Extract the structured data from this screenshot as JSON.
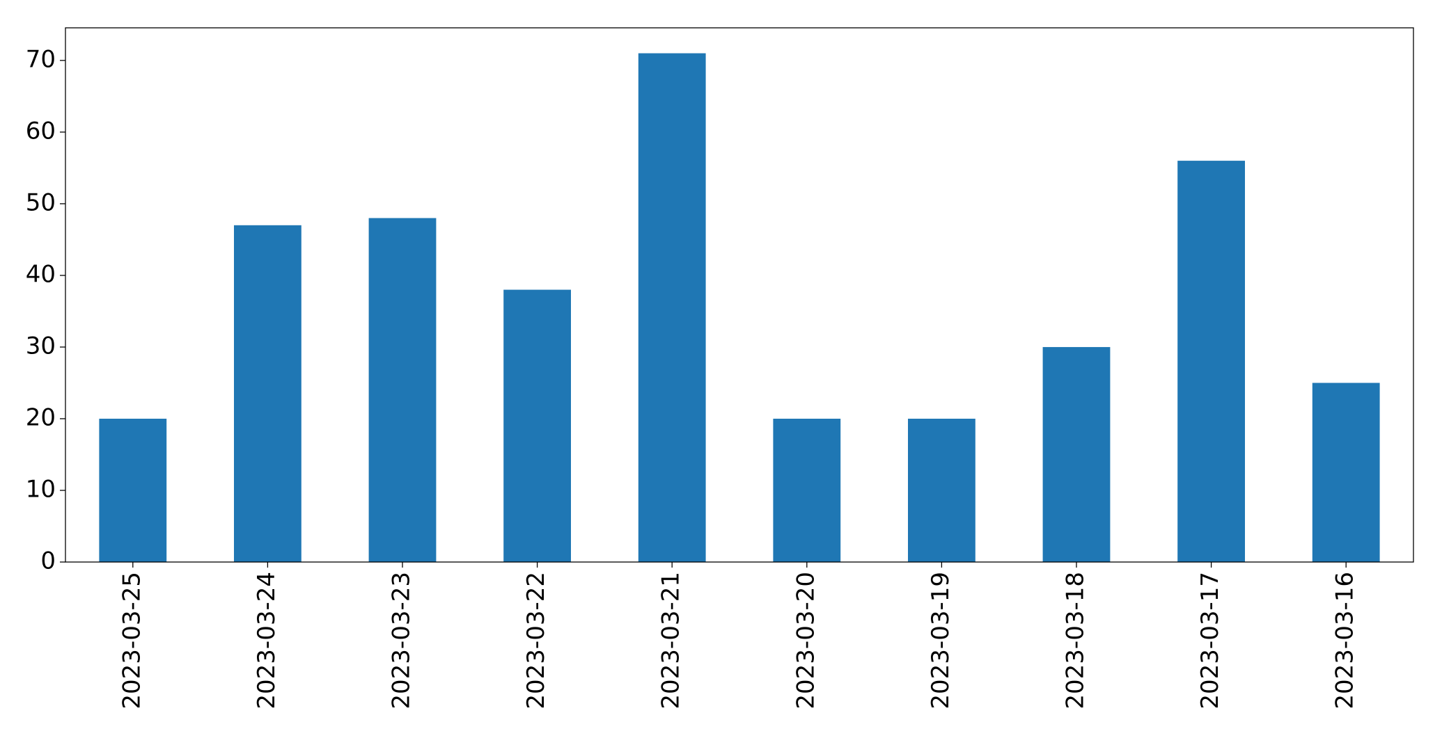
{
  "chart_data": {
    "type": "bar",
    "categories": [
      "2023-03-25",
      "2023-03-24",
      "2023-03-23",
      "2023-03-22",
      "2023-03-21",
      "2023-03-20",
      "2023-03-19",
      "2023-03-18",
      "2023-03-17",
      "2023-03-16"
    ],
    "values": [
      20,
      47,
      48,
      38,
      71,
      20,
      20,
      30,
      56,
      25
    ],
    "color": "#1f77b4",
    "ylim": [
      0,
      74.55
    ],
    "yticks": [
      0,
      10,
      20,
      30,
      40,
      50,
      60,
      70
    ],
    "grid": false
  }
}
